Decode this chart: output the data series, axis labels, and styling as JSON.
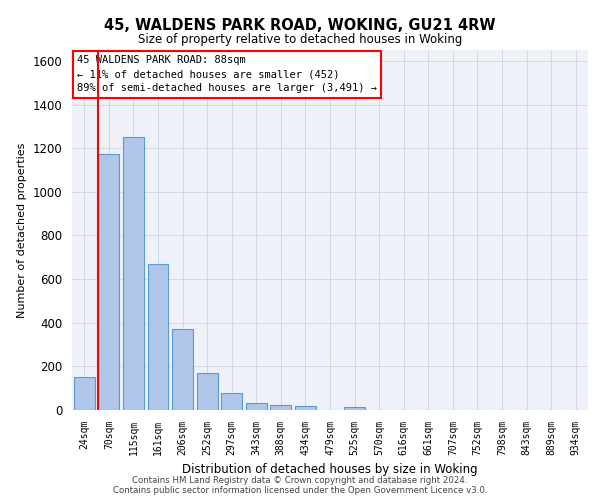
{
  "title1": "45, WALDENS PARK ROAD, WOKING, GU21 4RW",
  "title2": "Size of property relative to detached houses in Woking",
  "xlabel": "Distribution of detached houses by size in Woking",
  "ylabel": "Number of detached properties",
  "categories": [
    "24sqm",
    "70sqm",
    "115sqm",
    "161sqm",
    "206sqm",
    "252sqm",
    "297sqm",
    "343sqm",
    "388sqm",
    "434sqm",
    "479sqm",
    "525sqm",
    "570sqm",
    "616sqm",
    "661sqm",
    "707sqm",
    "752sqm",
    "798sqm",
    "843sqm",
    "889sqm",
    "934sqm"
  ],
  "values": [
    150,
    1175,
    1250,
    670,
    370,
    170,
    80,
    30,
    25,
    20,
    0,
    15,
    0,
    0,
    0,
    0,
    0,
    0,
    0,
    0,
    0
  ],
  "bar_color": "#aec6e8",
  "bar_edge_color": "#5b9bd5",
  "vline_color": "red",
  "annotation_line1": "45 WALDENS PARK ROAD: 88sqm",
  "annotation_line2": "← 11% of detached houses are smaller (452)",
  "annotation_line3": "89% of semi-detached houses are larger (3,491) →",
  "annotation_box_color": "white",
  "annotation_box_edge_color": "red",
  "ylim": [
    0,
    1650
  ],
  "yticks": [
    0,
    200,
    400,
    600,
    800,
    1000,
    1200,
    1400,
    1600
  ],
  "grid_color": "#d0d8e8",
  "background_color": "#eef2f8",
  "footer1": "Contains HM Land Registry data © Crown copyright and database right 2024.",
  "footer2": "Contains public sector information licensed under the Open Government Licence v3.0."
}
